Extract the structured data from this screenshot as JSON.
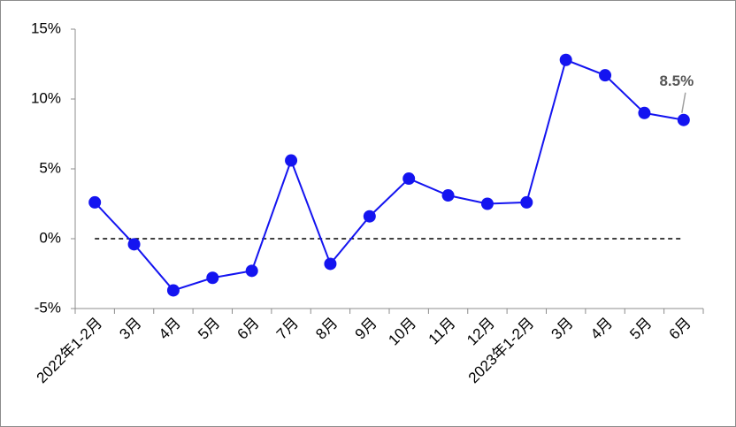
{
  "chart_data": {
    "type": "line",
    "categories": [
      "2022年1-2月",
      "3月",
      "4月",
      "5月",
      "6月",
      "7月",
      "8月",
      "9月",
      "10月",
      "11月",
      "12月",
      "2023年1-2月",
      "3月",
      "4月",
      "5月",
      "6月"
    ],
    "series": [
      {
        "color": "#1414f0",
        "values": [
          2.6,
          -0.4,
          -3.7,
          -2.8,
          -2.3,
          5.6,
          -1.8,
          1.6,
          4.3,
          3.1,
          2.5,
          2.6,
          12.8,
          11.7,
          9.0,
          8.5
        ],
        "value_labels": [
          null,
          null,
          null,
          null,
          null,
          null,
          null,
          null,
          null,
          null,
          null,
          null,
          null,
          null,
          null,
          "8.5%"
        ]
      }
    ],
    "ylim": [
      -5,
      15
    ],
    "yticks": [
      {
        "value": -5,
        "label": "-5%"
      },
      {
        "value": 0,
        "label": "0%"
      },
      {
        "value": 5,
        "label": "5%"
      },
      {
        "value": 10,
        "label": "10%"
      },
      {
        "value": 15,
        "label": "15%"
      }
    ],
    "zero_line": true
  }
}
